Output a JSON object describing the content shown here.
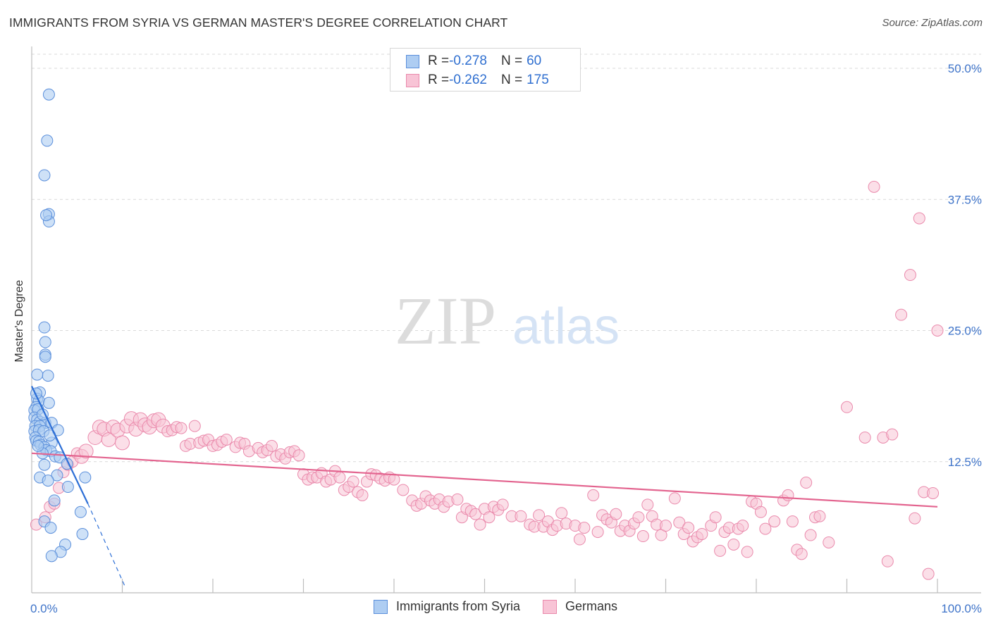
{
  "header": {
    "title": "IMMIGRANTS FROM SYRIA VS GERMAN MASTER'S DEGREE CORRELATION CHART",
    "source": "Source: ZipAtlas.com"
  },
  "legend": {
    "rows": [
      {
        "r_label": "R = ",
        "r_value": "-0.278",
        "n_label": "N = ",
        "n_value": "60"
      },
      {
        "r_label": "R = ",
        "r_value": "-0.262",
        "n_label": "N = ",
        "n_value": "175"
      }
    ]
  },
  "watermark": {
    "zip": "ZIP",
    "atlas": "atlas"
  },
  "colors": {
    "syria_fill": "#aecdf2",
    "syria_stroke": "#5b8fdb",
    "syria_line": "#2d6fd6",
    "german_fill": "#f8c4d6",
    "german_stroke": "#ea8aac",
    "german_line": "#e3648f",
    "grid": "#d9d9d9",
    "tick": "#3f74c9"
  },
  "chart_data": {
    "type": "scatter",
    "title": "IMMIGRANTS FROM SYRIA VS GERMAN MASTER'S DEGREE CORRELATION CHART",
    "xlabel": "",
    "ylabel": "Master's Degree",
    "xlim": [
      0,
      100
    ],
    "ylim": [
      0,
      50
    ],
    "x_tick_labels": [
      "0.0%",
      "100.0%"
    ],
    "y_ticks": [
      12.5,
      25.0,
      37.5,
      50.0
    ],
    "y_tick_labels": [
      "12.5%",
      "25.0%",
      "37.5%",
      "50.0%"
    ],
    "grid": true,
    "legend_position": "top-center",
    "series": [
      {
        "name": "Immigrants from Syria",
        "r": -0.278,
        "n": 60,
        "points": [
          [
            1.9,
            47.5
          ],
          [
            1.7,
            43.1
          ],
          [
            1.4,
            39.8
          ],
          [
            1.9,
            36.1
          ],
          [
            1.9,
            35.4
          ],
          [
            1.4,
            25.3
          ],
          [
            1.5,
            23.9
          ],
          [
            1.5,
            22.7
          ],
          [
            1.5,
            22.5
          ],
          [
            1.8,
            20.7
          ],
          [
            0.6,
            20.8
          ],
          [
            0.9,
            19.1
          ],
          [
            0.6,
            18.5
          ],
          [
            0.8,
            18.3
          ],
          [
            1.9,
            18.1
          ],
          [
            0.5,
            17.7
          ],
          [
            0.3,
            17.4
          ],
          [
            0.7,
            17.5
          ],
          [
            0.3,
            16.7
          ],
          [
            0.6,
            16.5
          ],
          [
            0.9,
            16.3
          ],
          [
            1.5,
            16.2
          ],
          [
            2.2,
            16.2
          ],
          [
            0.4,
            15.9
          ],
          [
            0.9,
            15.9
          ],
          [
            0.3,
            15.4
          ],
          [
            0.8,
            15.5
          ],
          [
            1.3,
            15.4
          ],
          [
            2.9,
            15.5
          ],
          [
            0.4,
            14.8
          ],
          [
            0.5,
            14.5
          ],
          [
            0.8,
            14.4
          ],
          [
            2.2,
            14.3
          ],
          [
            1.0,
            14.1
          ],
          [
            1.4,
            13.9
          ],
          [
            1.6,
            13.6
          ],
          [
            2.1,
            13.5
          ],
          [
            1.2,
            13.3
          ],
          [
            2.6,
            13.0
          ],
          [
            3.1,
            12.9
          ],
          [
            1.4,
            12.2
          ],
          [
            3.9,
            12.3
          ],
          [
            2.8,
            11.2
          ],
          [
            5.9,
            11.0
          ],
          [
            0.9,
            11.0
          ],
          [
            1.8,
            10.7
          ],
          [
            4.0,
            10.1
          ],
          [
            2.5,
            8.8
          ],
          [
            5.4,
            7.7
          ],
          [
            1.4,
            6.8
          ],
          [
            2.1,
            6.2
          ],
          [
            5.6,
            5.6
          ],
          [
            3.7,
            4.6
          ],
          [
            3.2,
            3.9
          ],
          [
            2.2,
            3.5
          ],
          [
            1.6,
            36.0
          ],
          [
            0.5,
            19.0
          ],
          [
            1.2,
            17.0
          ],
          [
            2.0,
            15.0
          ],
          [
            0.7,
            14.0
          ]
        ],
        "trend": {
          "x": [
            0,
            6.2
          ],
          "y": [
            19.7,
            8.5
          ]
        },
        "trend_extension": {
          "x": [
            6.2,
            10.3
          ],
          "y": [
            8.5,
            0.6
          ]
        }
      },
      {
        "name": "Germans",
        "r": -0.262,
        "n": 175,
        "points": [
          [
            0.5,
            6.5
          ],
          [
            1.5,
            7.2
          ],
          [
            2.0,
            8.2
          ],
          [
            2.5,
            8.5
          ],
          [
            3.0,
            10.0
          ],
          [
            3.5,
            11.5
          ],
          [
            4.0,
            12.2
          ],
          [
            4.5,
            12.5
          ],
          [
            5.0,
            13.3
          ],
          [
            5.5,
            13.0
          ],
          [
            6.0,
            13.5
          ],
          [
            7.0,
            14.8
          ],
          [
            7.5,
            15.8
          ],
          [
            8.0,
            15.6
          ],
          [
            8.5,
            14.6
          ],
          [
            9.0,
            15.8
          ],
          [
            9.5,
            15.5
          ],
          [
            10.0,
            14.3
          ],
          [
            10.5,
            15.9
          ],
          [
            11.0,
            16.6
          ],
          [
            11.5,
            15.6
          ],
          [
            12.0,
            16.5
          ],
          [
            12.5,
            16.0
          ],
          [
            13.0,
            15.8
          ],
          [
            13.5,
            16.4
          ],
          [
            14.0,
            16.5
          ],
          [
            14.5,
            15.9
          ],
          [
            15.0,
            15.4
          ],
          [
            15.5,
            15.5
          ],
          [
            16.0,
            15.8
          ],
          [
            16.5,
            15.7
          ],
          [
            17.0,
            14.0
          ],
          [
            17.5,
            14.2
          ],
          [
            18.0,
            15.9
          ],
          [
            18.5,
            14.3
          ],
          [
            19.0,
            14.5
          ],
          [
            19.5,
            14.6
          ],
          [
            20.0,
            14.0
          ],
          [
            20.5,
            14.1
          ],
          [
            21.0,
            14.4
          ],
          [
            21.5,
            14.6
          ],
          [
            22.5,
            13.9
          ],
          [
            23.0,
            14.3
          ],
          [
            23.5,
            14.2
          ],
          [
            24.0,
            13.5
          ],
          [
            25.0,
            13.8
          ],
          [
            25.5,
            13.4
          ],
          [
            26.0,
            13.6
          ],
          [
            26.5,
            14.0
          ],
          [
            27.0,
            13.0
          ],
          [
            27.5,
            13.2
          ],
          [
            28.0,
            12.8
          ],
          [
            28.5,
            13.4
          ],
          [
            29.0,
            13.5
          ],
          [
            29.5,
            13.1
          ],
          [
            30.0,
            11.3
          ],
          [
            30.5,
            10.8
          ],
          [
            31.0,
            11.0
          ],
          [
            31.5,
            11.0
          ],
          [
            32.0,
            11.4
          ],
          [
            32.5,
            10.6
          ],
          [
            33.0,
            10.8
          ],
          [
            33.5,
            11.6
          ],
          [
            34.0,
            11.0
          ],
          [
            34.5,
            9.8
          ],
          [
            35.0,
            10.1
          ],
          [
            35.5,
            10.6
          ],
          [
            36.0,
            9.6
          ],
          [
            36.5,
            9.3
          ],
          [
            37.0,
            10.6
          ],
          [
            37.5,
            11.3
          ],
          [
            38.0,
            11.2
          ],
          [
            38.5,
            10.9
          ],
          [
            39.0,
            10.7
          ],
          [
            39.5,
            11.0
          ],
          [
            40.0,
            10.8
          ],
          [
            41.0,
            9.8
          ],
          [
            42.0,
            8.8
          ],
          [
            42.5,
            8.3
          ],
          [
            43.0,
            8.5
          ],
          [
            43.5,
            9.2
          ],
          [
            44.0,
            8.8
          ],
          [
            44.5,
            8.5
          ],
          [
            45.0,
            8.9
          ],
          [
            45.5,
            8.2
          ],
          [
            46.0,
            8.7
          ],
          [
            47.0,
            8.9
          ],
          [
            47.5,
            7.2
          ],
          [
            48.0,
            8.0
          ],
          [
            48.5,
            7.8
          ],
          [
            49.0,
            7.5
          ],
          [
            49.5,
            6.5
          ],
          [
            50.0,
            8.0
          ],
          [
            50.5,
            7.2
          ],
          [
            51.0,
            8.2
          ],
          [
            51.5,
            7.9
          ],
          [
            52.0,
            8.4
          ],
          [
            53.0,
            7.3
          ],
          [
            54.0,
            7.3
          ],
          [
            55.0,
            6.5
          ],
          [
            55.5,
            6.3
          ],
          [
            56.0,
            7.4
          ],
          [
            56.5,
            6.3
          ],
          [
            57.0,
            6.8
          ],
          [
            57.5,
            6.0
          ],
          [
            58.0,
            6.4
          ],
          [
            58.5,
            7.6
          ],
          [
            59.0,
            6.6
          ],
          [
            60.0,
            6.4
          ],
          [
            60.5,
            5.1
          ],
          [
            61.0,
            6.2
          ],
          [
            62.0,
            9.3
          ],
          [
            62.5,
            5.8
          ],
          [
            63.0,
            7.4
          ],
          [
            63.5,
            7.0
          ],
          [
            64.0,
            6.7
          ],
          [
            64.5,
            7.5
          ],
          [
            65.0,
            5.9
          ],
          [
            65.5,
            6.4
          ],
          [
            66.0,
            5.9
          ],
          [
            66.5,
            6.6
          ],
          [
            67.0,
            7.2
          ],
          [
            67.5,
            5.4
          ],
          [
            68.0,
            8.4
          ],
          [
            68.5,
            7.3
          ],
          [
            69.0,
            6.5
          ],
          [
            69.5,
            5.5
          ],
          [
            70.0,
            6.4
          ],
          [
            71.0,
            9.0
          ],
          [
            71.5,
            6.7
          ],
          [
            72.0,
            5.6
          ],
          [
            72.5,
            6.2
          ],
          [
            73.0,
            4.9
          ],
          [
            73.5,
            5.3
          ],
          [
            74.0,
            5.6
          ],
          [
            75.0,
            6.4
          ],
          [
            75.5,
            7.2
          ],
          [
            76.0,
            4.0
          ],
          [
            76.5,
            5.8
          ],
          [
            77.0,
            6.2
          ],
          [
            77.5,
            4.6
          ],
          [
            78.0,
            6.1
          ],
          [
            78.5,
            6.4
          ],
          [
            79.0,
            3.9
          ],
          [
            79.5,
            8.7
          ],
          [
            80.0,
            8.5
          ],
          [
            80.5,
            7.7
          ],
          [
            81.0,
            6.1
          ],
          [
            82.0,
            6.8
          ],
          [
            83.0,
            8.8
          ],
          [
            83.5,
            9.3
          ],
          [
            84.0,
            6.8
          ],
          [
            84.5,
            4.1
          ],
          [
            85.0,
            3.7
          ],
          [
            85.5,
            10.5
          ],
          [
            86.0,
            5.5
          ],
          [
            86.5,
            7.2
          ],
          [
            87.0,
            7.3
          ],
          [
            88.0,
            4.8
          ],
          [
            90.0,
            17.7
          ],
          [
            92.0,
            14.8
          ],
          [
            93.0,
            38.7
          ],
          [
            94.0,
            14.8
          ],
          [
            95.0,
            15.1
          ],
          [
            96.0,
            26.5
          ],
          [
            97.0,
            30.3
          ],
          [
            98.0,
            35.7
          ],
          [
            100.0,
            25.0
          ],
          [
            98.5,
            9.6
          ],
          [
            99.0,
            1.8
          ],
          [
            99.5,
            9.5
          ],
          [
            94.5,
            3.0
          ],
          [
            97.5,
            7.1
          ]
        ],
        "trend": {
          "x": [
            0,
            100
          ],
          "y": [
            13.3,
            8.2
          ]
        }
      }
    ]
  },
  "bottom_legend": {
    "items": [
      {
        "label": "Immigrants from Syria"
      },
      {
        "label": "Germans"
      }
    ]
  }
}
